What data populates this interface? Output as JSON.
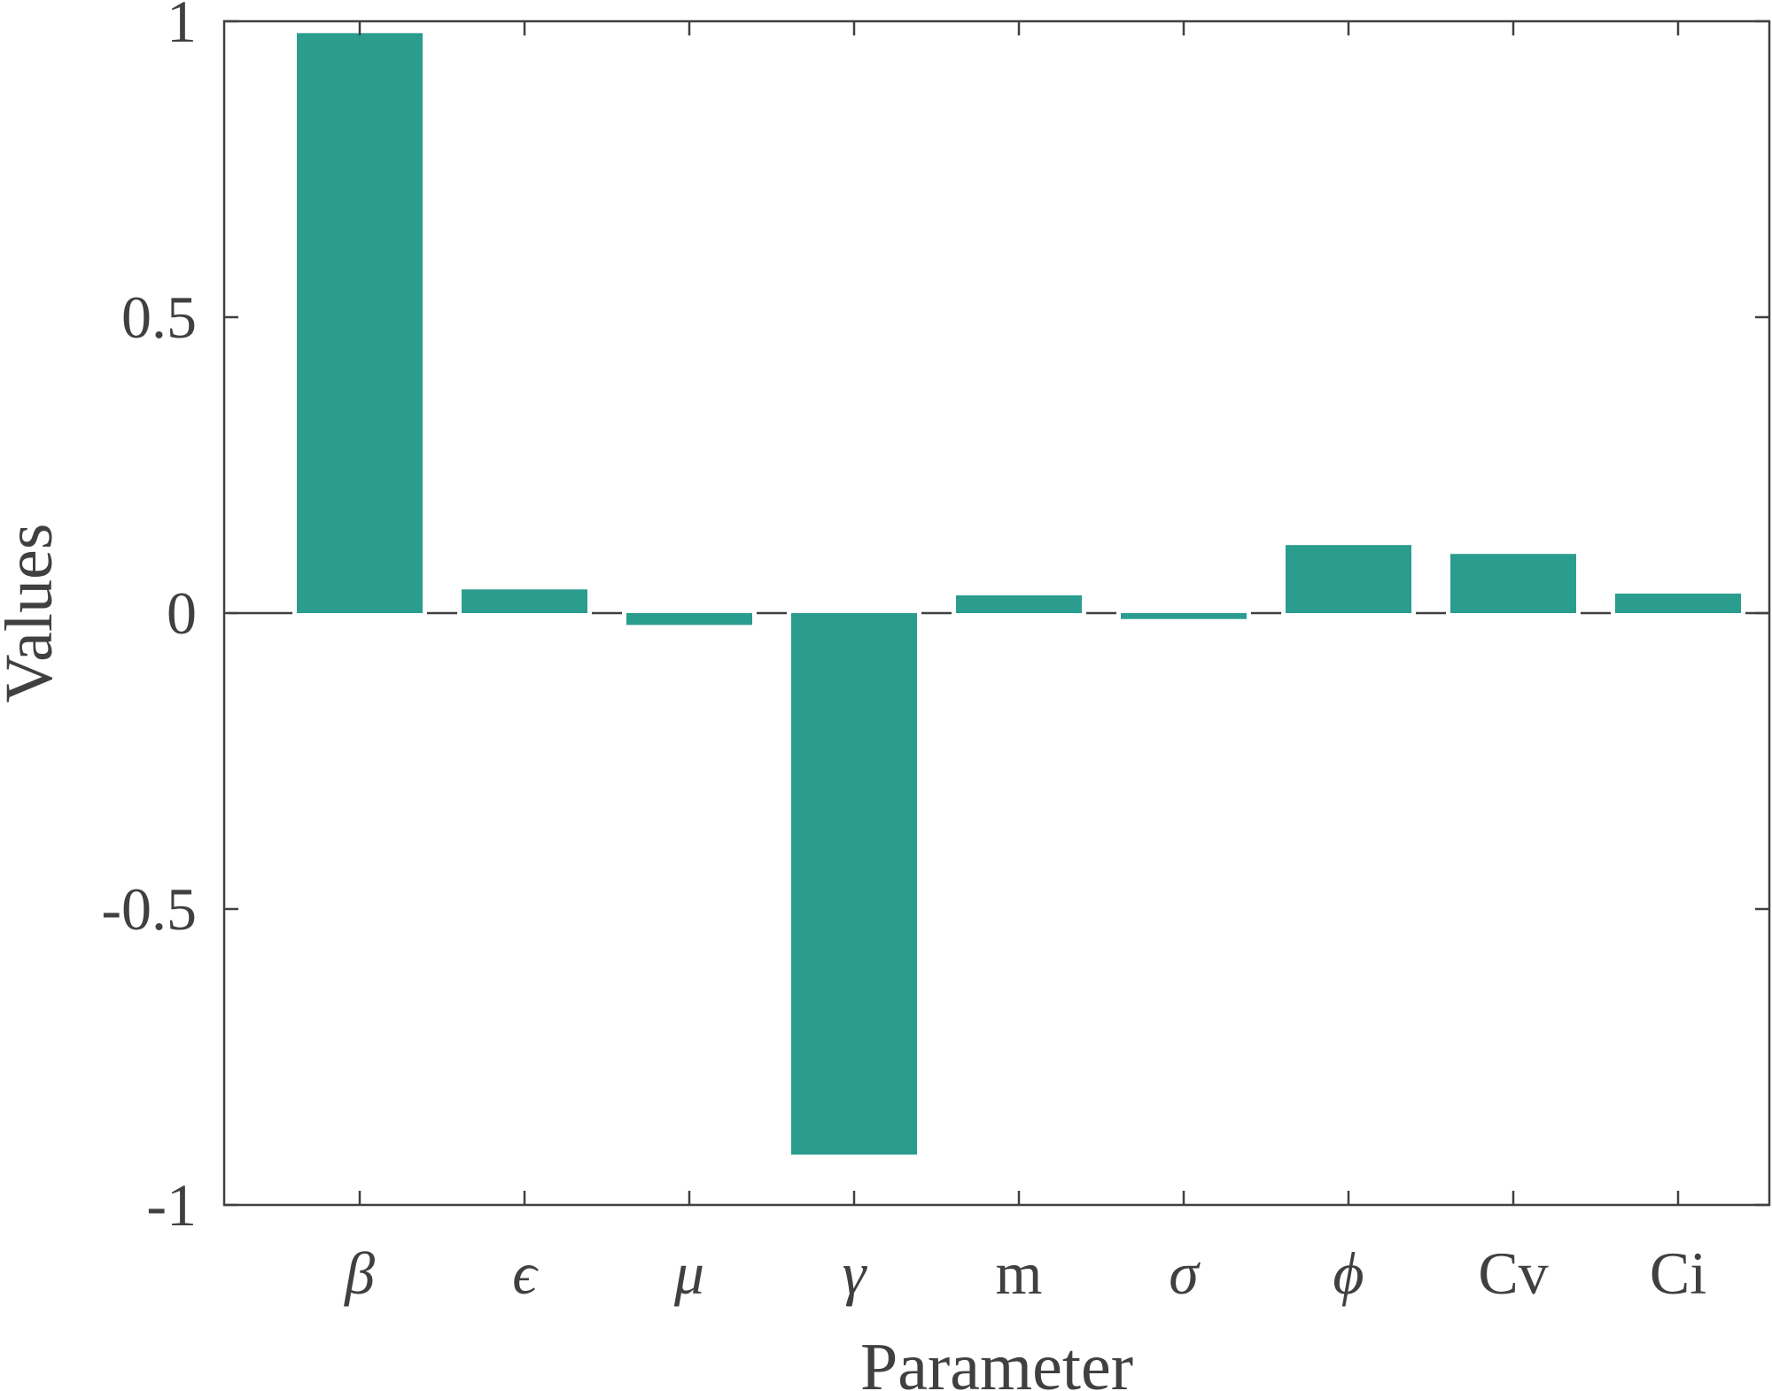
{
  "chart_data": {
    "type": "bar",
    "categories": [
      "β",
      "ϵ",
      "μ",
      "γ",
      "m",
      "σ",
      "ϕ",
      "Cv",
      "Ci"
    ],
    "values": [
      0.98,
      0.04,
      -0.02,
      -0.915,
      0.03,
      -0.01,
      0.115,
      0.1,
      0.033
    ],
    "title": "",
    "xlabel": "Parameter",
    "ylabel": "Values",
    "ylim": [
      -1,
      1
    ],
    "yticks": [
      -1,
      -0.5,
      0,
      0.5,
      1
    ],
    "ytick_labels": [
      "-1",
      "-0.5",
      "0",
      "0.5",
      "1"
    ],
    "grid": false,
    "legend": "none",
    "colors": {
      "bar": "#2a9d8f",
      "axis": "#404040"
    }
  }
}
